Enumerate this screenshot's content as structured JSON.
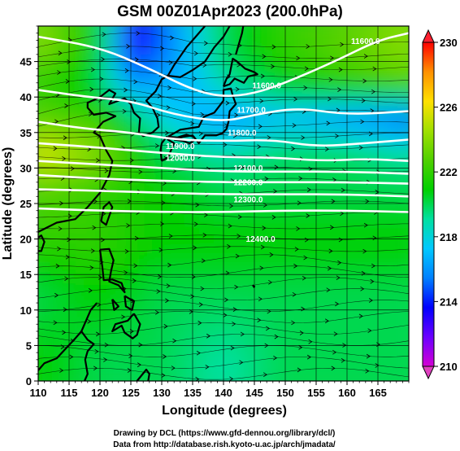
{
  "chart_data": {
    "type": "heatmap",
    "title": "GSM 00Z01Apr2023 (200.0hPa)",
    "xlabel": "Longitude (degrees)",
    "ylabel": "Latitude  (degrees)",
    "xlim": [
      110,
      170
    ],
    "ylim": [
      0,
      50
    ],
    "x_ticks": [
      110,
      115,
      120,
      125,
      130,
      135,
      140,
      145,
      150,
      155,
      160,
      165
    ],
    "y_ticks": [
      0,
      5,
      10,
      15,
      20,
      25,
      30,
      35,
      40,
      45
    ],
    "colorbar": {
      "min": 210,
      "max": 230,
      "ticks": [
        210,
        214,
        218,
        222,
        226,
        230
      ],
      "colors": [
        "#d400d4",
        "#6a00ff",
        "#0000ff",
        "#0080ff",
        "#00c8ff",
        "#00e0a0",
        "#00d000",
        "#50d000",
        "#a0e000",
        "#ffe000",
        "#ff9000",
        "#ff0000"
      ]
    },
    "field_temperature": [
      {
        "lat": 47,
        "lon_values": [
          [
            110,
            224
          ],
          [
            120,
            221
          ],
          [
            125,
            213
          ],
          [
            130,
            215
          ],
          [
            140,
            220
          ],
          [
            150,
            222
          ],
          [
            160,
            223
          ],
          [
            170,
            224
          ]
        ]
      },
      {
        "lat": 42,
        "lon_values": [
          [
            110,
            222
          ],
          [
            120,
            220
          ],
          [
            125,
            216
          ],
          [
            135,
            217
          ],
          [
            140,
            219
          ],
          [
            150,
            221
          ],
          [
            160,
            222
          ],
          [
            170,
            223
          ]
        ]
      },
      {
        "lat": 37,
        "lon_values": [
          [
            110,
            223
          ],
          [
            120,
            222
          ],
          [
            130,
            218
          ],
          [
            140,
            216
          ],
          [
            150,
            217
          ],
          [
            160,
            216
          ],
          [
            170,
            215
          ]
        ]
      },
      {
        "lat": 32,
        "lon_values": [
          [
            110,
            226
          ],
          [
            120,
            224
          ],
          [
            130,
            220
          ],
          [
            140,
            219
          ],
          [
            150,
            220
          ],
          [
            160,
            220
          ],
          [
            170,
            219
          ]
        ]
      },
      {
        "lat": 27,
        "lon_values": [
          [
            110,
            223
          ],
          [
            120,
            222
          ],
          [
            130,
            221
          ],
          [
            140,
            220
          ],
          [
            150,
            220
          ],
          [
            160,
            220
          ],
          [
            170,
            220
          ]
        ]
      },
      {
        "lat": 20,
        "lon_values": [
          [
            110,
            222
          ],
          [
            120,
            222
          ],
          [
            130,
            221
          ],
          [
            140,
            221
          ],
          [
            150,
            221
          ],
          [
            160,
            221
          ],
          [
            170,
            221
          ]
        ]
      },
      {
        "lat": 12,
        "lon_values": [
          [
            110,
            220
          ],
          [
            120,
            221
          ],
          [
            130,
            220
          ],
          [
            140,
            220
          ],
          [
            150,
            220
          ],
          [
            160,
            220
          ],
          [
            170,
            220
          ]
        ]
      },
      {
        "lat": 3,
        "lon_values": [
          [
            110,
            221
          ],
          [
            120,
            220
          ],
          [
            130,
            220
          ],
          [
            140,
            219
          ],
          [
            150,
            220
          ],
          [
            160,
            220
          ],
          [
            170,
            220
          ]
        ]
      }
    ],
    "contours": [
      {
        "label": "11600.0",
        "lat_profile": [
          [
            110,
            48.5
          ],
          [
            120,
            47
          ],
          [
            128,
            44
          ],
          [
            135,
            41
          ],
          [
            140,
            40
          ],
          [
            145,
            40.5
          ],
          [
            150,
            42
          ],
          [
            158,
            45
          ],
          [
            165,
            48
          ],
          [
            170,
            49
          ]
        ]
      },
      {
        "label": "11700.0",
        "lat_profile": [
          [
            110,
            41
          ],
          [
            118,
            40
          ],
          [
            125,
            39.5
          ],
          [
            132,
            37.5
          ],
          [
            140,
            36.5
          ],
          [
            145,
            37.5
          ],
          [
            152,
            38.5
          ],
          [
            160,
            37.5
          ],
          [
            170,
            38
          ]
        ]
      },
      {
        "label": "11800.0",
        "lat_profile": [
          [
            110,
            36.5
          ],
          [
            118,
            35.5
          ],
          [
            125,
            35
          ],
          [
            132,
            34
          ],
          [
            140,
            33.8
          ],
          [
            148,
            34
          ],
          [
            155,
            33
          ],
          [
            163,
            33.5
          ],
          [
            170,
            34
          ]
        ]
      },
      {
        "label": "11900.0",
        "lat_profile": [
          [
            110,
            33.5
          ],
          [
            118,
            33
          ],
          [
            125,
            32.5
          ],
          [
            132,
            32
          ],
          [
            140,
            31.5
          ],
          [
            148,
            31.5
          ],
          [
            156,
            31
          ],
          [
            163,
            31.3
          ],
          [
            170,
            31
          ]
        ]
      },
      {
        "label": "12000.0",
        "lat_profile": [
          [
            110,
            31
          ],
          [
            120,
            30.5
          ],
          [
            130,
            30
          ],
          [
            140,
            29.5
          ],
          [
            150,
            29.5
          ],
          [
            160,
            29.5
          ],
          [
            170,
            29.2
          ]
        ]
      },
      {
        "label": "12100.0",
        "lat_profile": [
          [
            110,
            29
          ],
          [
            120,
            28.5
          ],
          [
            130,
            28.2
          ],
          [
            140,
            28
          ],
          [
            150,
            28
          ],
          [
            160,
            28
          ],
          [
            170,
            27.8
          ]
        ]
      },
      {
        "label": "12200.0",
        "lat_profile": [
          [
            110,
            27
          ],
          [
            120,
            26.8
          ],
          [
            130,
            26.5
          ],
          [
            140,
            26.3
          ],
          [
            150,
            26.3
          ],
          [
            160,
            26.3
          ],
          [
            170,
            26
          ]
        ]
      },
      {
        "label": "12300.0",
        "lat_profile": [
          [
            110,
            24.3
          ],
          [
            120,
            24
          ],
          [
            130,
            23.8
          ],
          [
            140,
            23.8
          ],
          [
            150,
            24
          ],
          [
            160,
            24
          ],
          [
            170,
            23.8
          ]
        ]
      }
    ],
    "contour_label_positions": [
      {
        "label": "11600.0",
        "lon": 147,
        "lat": 41.2
      },
      {
        "label": "11600.0",
        "lon": 163,
        "lat": 47.5
      },
      {
        "label": "11700.0",
        "lon": 144.5,
        "lat": 37.8
      },
      {
        "label": "11800.0",
        "lon": 143,
        "lat": 34.6
      },
      {
        "label": "11900.0",
        "lon": 133,
        "lat": 32.7
      },
      {
        "label": "12000.0",
        "lon": 133,
        "lat": 31.0
      },
      {
        "label": "12100.0",
        "lon": 144,
        "lat": 29.6
      },
      {
        "label": "12200.0",
        "lon": 144,
        "lat": 27.6
      },
      {
        "label": "12300.0",
        "lon": 144,
        "lat": 25.2
      },
      {
        "label": "12400.0",
        "lon": 146,
        "lat": 19.6
      }
    ]
  },
  "credits": {
    "line1": "Drawing by DCL (https://www.gfd-dennou.org/library/dcl/)",
    "line2": "Data from http://database.rish.kyoto-u.ac.jp/arch/jmadata/"
  }
}
